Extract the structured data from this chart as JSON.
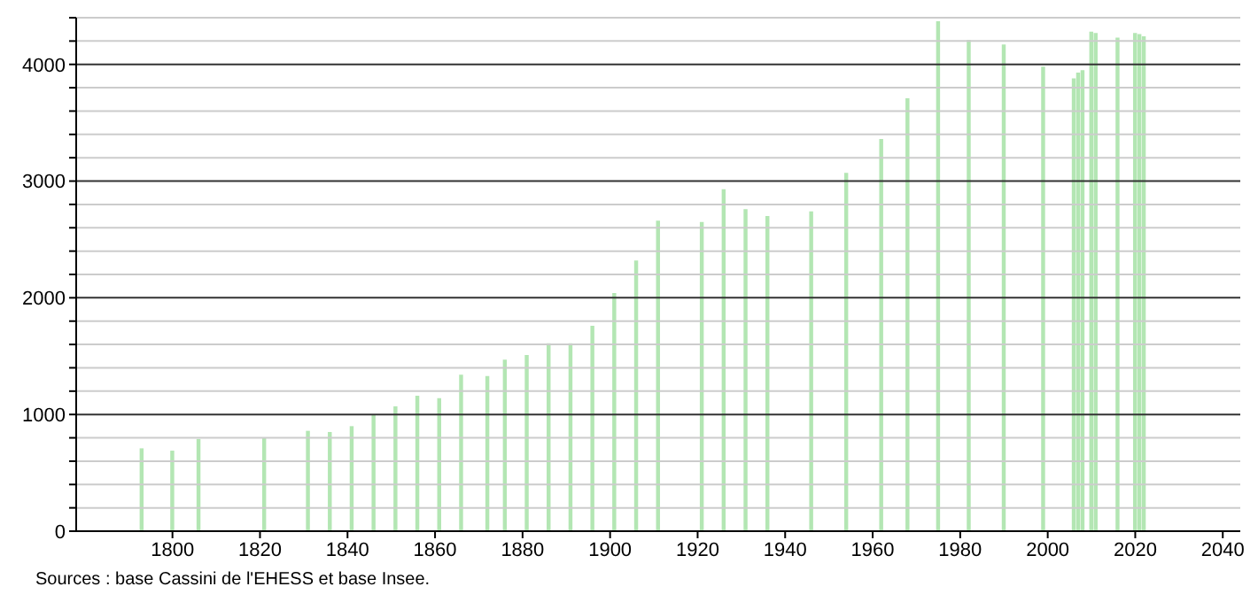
{
  "chart_data": {
    "type": "bar",
    "color": "#b3e6b3",
    "x": [
      1793,
      1800,
      1806,
      1821,
      1831,
      1836,
      1841,
      1846,
      1851,
      1856,
      1861,
      1866,
      1872,
      1876,
      1881,
      1886,
      1891,
      1896,
      1901,
      1906,
      1911,
      1921,
      1926,
      1931,
      1936,
      1946,
      1954,
      1962,
      1968,
      1975,
      1982,
      1990,
      1999,
      2006,
      2007,
      2008,
      2010,
      2011,
      2016,
      2020,
      2021,
      2022
    ],
    "values": [
      710,
      690,
      790,
      800,
      860,
      850,
      900,
      1000,
      1070,
      1160,
      1140,
      1340,
      1330,
      1470,
      1510,
      1610,
      1610,
      1760,
      2040,
      2320,
      2660,
      2650,
      2930,
      2760,
      2700,
      2740,
      3070,
      3360,
      3710,
      4370,
      4210,
      4170,
      3980,
      3880,
      3930,
      3950,
      4280,
      4270,
      4230,
      4270,
      4260,
      4240
    ],
    "xlim": [
      1778,
      2044
    ],
    "xticks": [
      1800,
      1820,
      1840,
      1860,
      1880,
      1900,
      1920,
      1940,
      1960,
      1980,
      2000,
      2020,
      2040
    ],
    "ylim": [
      0,
      4400
    ],
    "yticks": [
      0,
      {
        "value": 200,
        "label": null
      },
      {
        "value": 400,
        "label": null
      },
      {
        "value": 600,
        "label": null
      },
      {
        "value": 800,
        "label": null
      },
      1000,
      {
        "value": 1200,
        "label": null
      },
      {
        "value": 1400,
        "label": null
      },
      {
        "value": 1600,
        "label": null
      },
      {
        "value": 1800,
        "label": null
      },
      2000,
      {
        "value": 2200,
        "label": null
      },
      {
        "value": 2400,
        "label": null
      },
      {
        "value": 2600,
        "label": null
      },
      {
        "value": 2800,
        "label": null
      },
      3000,
      {
        "value": 3200,
        "label": null
      },
      {
        "value": 3400,
        "label": null
      },
      {
        "value": 3600,
        "label": null
      },
      {
        "value": 3800,
        "label": null
      },
      4000,
      {
        "value": 4200,
        "label": null
      },
      {
        "value": 4400,
        "label": null
      }
    ],
    "grid": "y",
    "annotations": [
      "Sources : base Cassini de l'EHESS et base Insee."
    ]
  }
}
